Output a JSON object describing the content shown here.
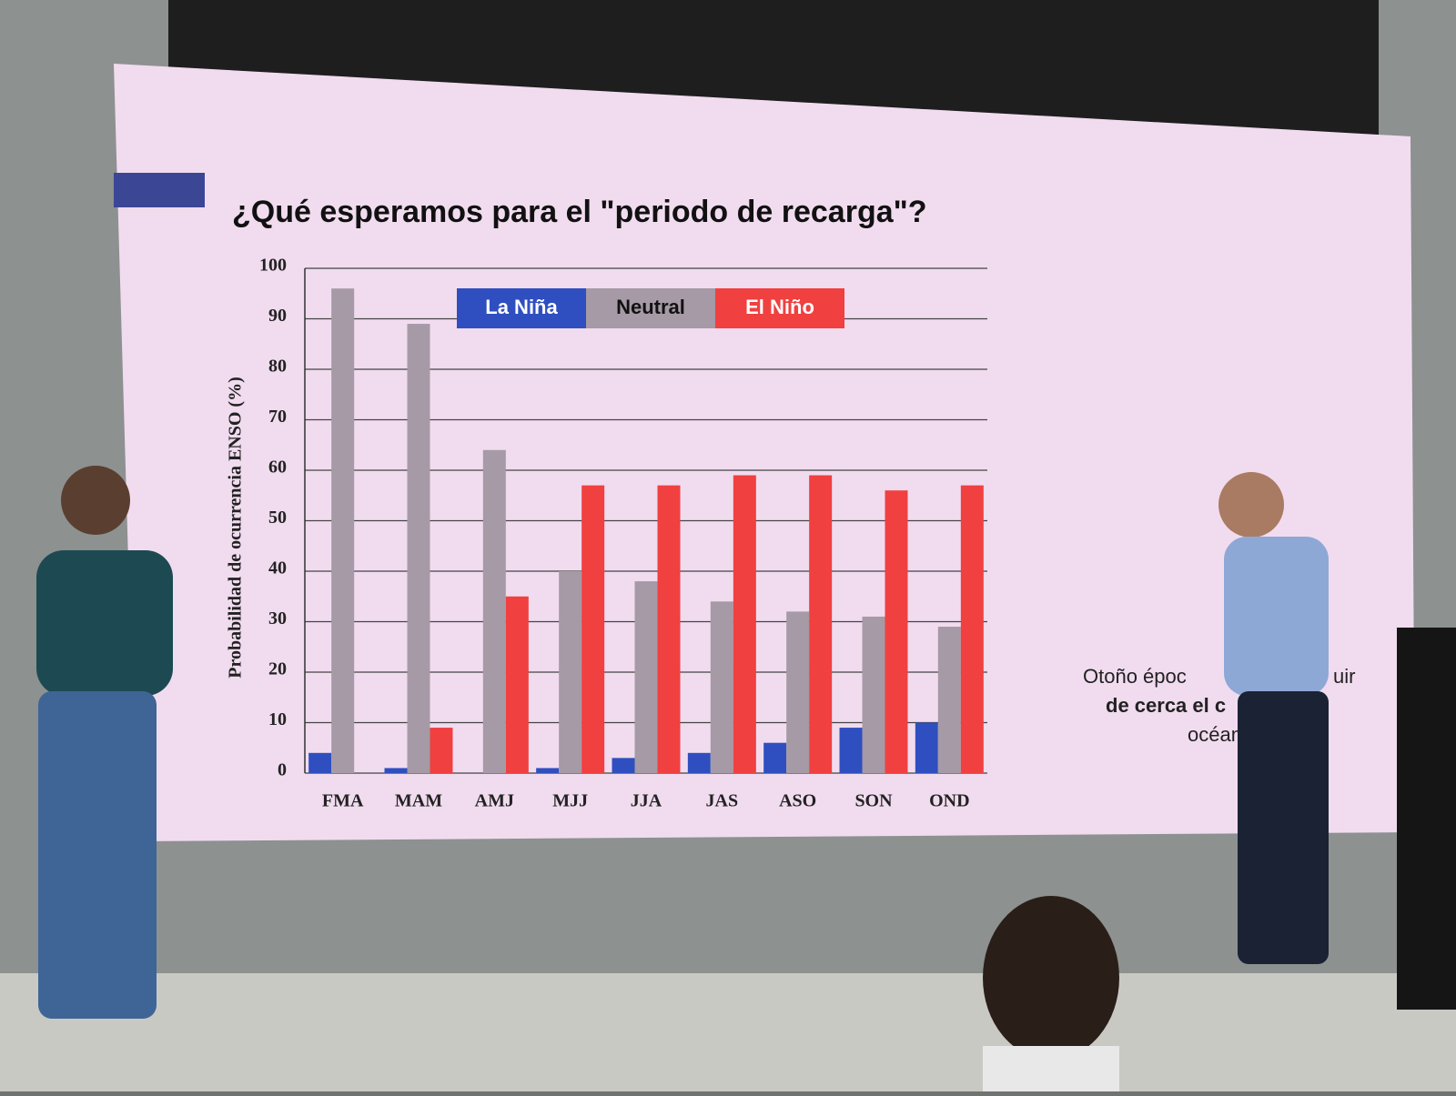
{
  "chart_data": {
    "type": "bar",
    "title": "¿Qué esperamos para el \"periodo de recarga\"?",
    "y_label": "Probabilidad de ocurrencia ENSO (%)",
    "categories": [
      "FMA",
      "MAM",
      "AMJ",
      "MJJ",
      "JJA",
      "JAS",
      "ASO",
      "SON",
      "OND"
    ],
    "series": [
      {
        "name": "La Niña",
        "color": "#2f4fc0",
        "values": [
          4,
          1,
          0,
          1,
          3,
          4,
          6,
          9,
          10
        ]
      },
      {
        "name": "Neutral",
        "color": "#a59aa5",
        "values": [
          96,
          89,
          64,
          40,
          38,
          34,
          32,
          31,
          29
        ]
      },
      {
        "name": "El Niño",
        "color": "#f04040",
        "values": [
          0,
          9,
          35,
          57,
          57,
          59,
          59,
          56,
          57
        ]
      }
    ],
    "ylim": [
      0,
      100
    ],
    "yticks": [
      0,
      10,
      20,
      30,
      40,
      50,
      60,
      70,
      80,
      90,
      100
    ],
    "grid": true,
    "legend": "top",
    "annotations": [
      "Otoño époc",
      "uir",
      "de cerca el c",
      "océan"
    ]
  }
}
